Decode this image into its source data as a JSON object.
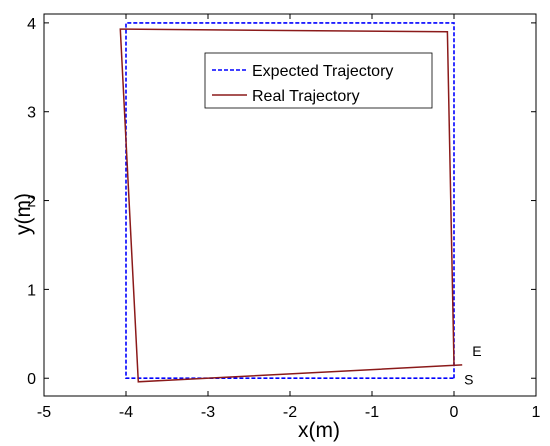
{
  "chart_data": {
    "type": "line",
    "title": "",
    "xlabel": "x(m)",
    "ylabel": "y(m)",
    "xlim": [
      -5,
      1
    ],
    "ylim": [
      -0.2,
      4.1
    ],
    "xticks": [
      -5,
      -4,
      -3,
      -2,
      -1,
      0,
      1
    ],
    "yticks": [
      0,
      1,
      2,
      3,
      4
    ],
    "grid": false,
    "legend_position": "top-right",
    "series": [
      {
        "name": "Expected Trajectory",
        "style": "dashed",
        "color": "#0000ff",
        "x": [
          0,
          0,
          -4,
          -4,
          0
        ],
        "y": [
          0,
          4,
          4,
          0,
          0
        ]
      },
      {
        "name": "Real Trajectory",
        "style": "solid",
        "color": "#8b1a1a",
        "x": [
          0.1,
          -3.85,
          -4.07,
          -0.08,
          0.0
        ],
        "y": [
          0.15,
          -0.04,
          3.93,
          3.9,
          0.15
        ]
      }
    ],
    "annotations": [
      {
        "text": "E",
        "x": 0.28,
        "y": 0.25
      },
      {
        "text": "S",
        "x": 0.18,
        "y": -0.07
      }
    ]
  }
}
